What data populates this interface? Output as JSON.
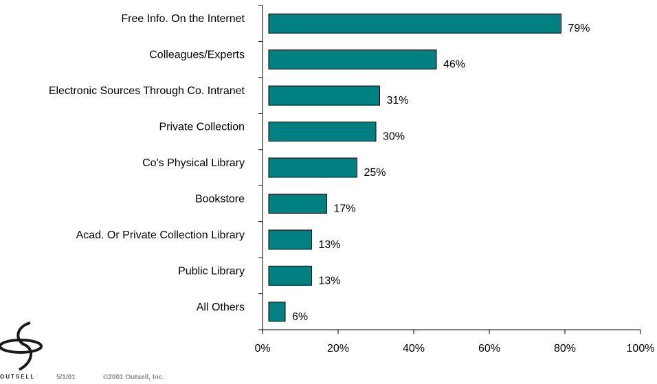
{
  "chart_data": {
    "type": "bar",
    "orientation": "horizontal",
    "categories": [
      "Free Info. On the Internet",
      "Colleagues/Experts",
      "Electronic Sources Through Co. Intranet",
      "Private Collection",
      "Co's Physical Library",
      "Bookstore",
      "Acad. Or Private Collection Library",
      "Public Library",
      "All Others"
    ],
    "values": [
      79,
      46,
      31,
      30,
      25,
      17,
      13,
      13,
      6
    ],
    "value_labels": [
      "79%",
      "46%",
      "31%",
      "30%",
      "25%",
      "17%",
      "13%",
      "13%",
      "6%"
    ],
    "xlim": [
      0,
      100
    ],
    "x_ticks": [
      0,
      20,
      40,
      60,
      80,
      100
    ],
    "x_tick_labels": [
      "0%",
      "20%",
      "40%",
      "60%",
      "80%",
      "100%"
    ],
    "bar_color": "#008080",
    "grid": false
  },
  "footer": {
    "brand": "OUTSELL",
    "date": "5/1/01",
    "copyright": "©2001 Outsell, Inc."
  }
}
